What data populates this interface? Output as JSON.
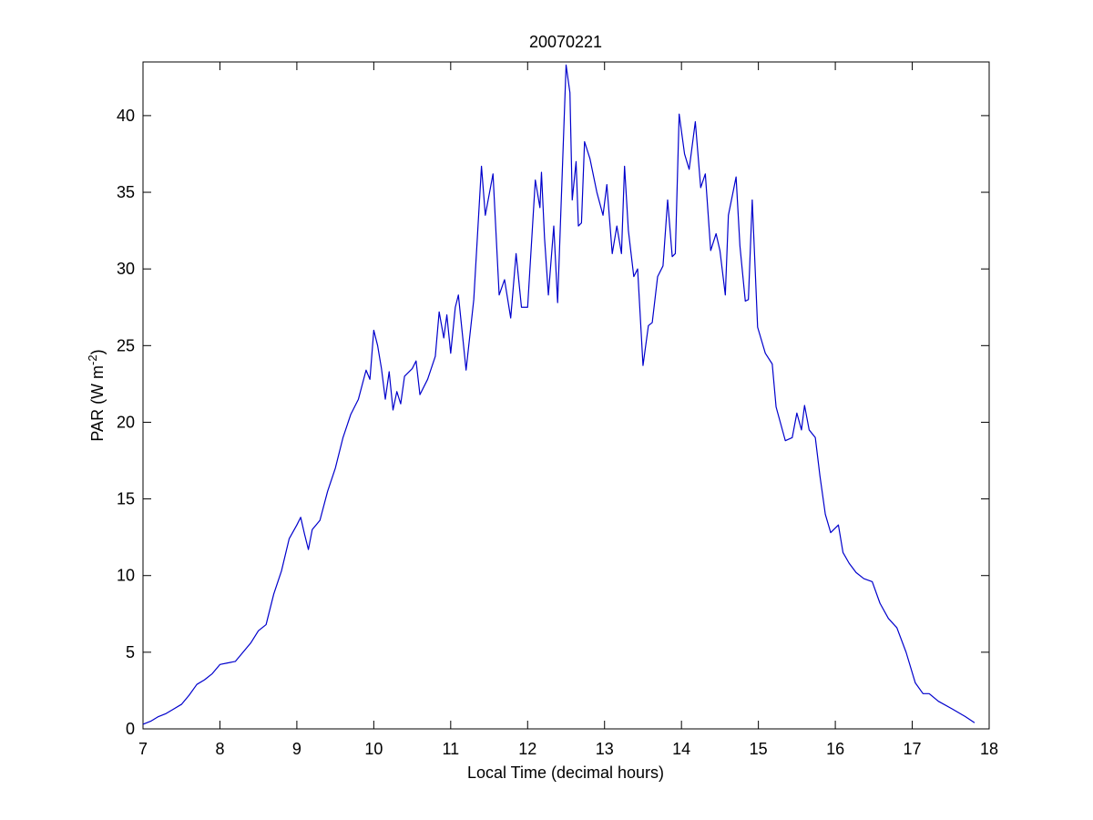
{
  "chart_data": {
    "type": "line",
    "title": "20070221",
    "xlabel": "Local Time (decimal hours)",
    "ylabel": {
      "text": "PAR (W m",
      "superscript": "-2",
      "suffix": ")"
    },
    "xlim": [
      7,
      18
    ],
    "ylim": [
      0,
      43.5
    ],
    "xticks": [
      7,
      8,
      9,
      10,
      11,
      12,
      13,
      14,
      15,
      16,
      17,
      18
    ],
    "yticks": [
      0,
      5,
      10,
      15,
      20,
      25,
      30,
      35,
      40
    ],
    "grid": false,
    "series": [
      {
        "color": "#0000cc",
        "x": [
          7.0,
          7.1,
          7.2,
          7.3,
          7.4,
          7.5,
          7.6,
          7.7,
          7.8,
          7.9,
          8.0,
          8.1,
          8.2,
          8.3,
          8.4,
          8.5,
          8.6,
          8.7,
          8.8,
          8.9,
          9.0,
          9.05,
          9.1,
          9.15,
          9.2,
          9.3,
          9.4,
          9.5,
          9.6,
          9.7,
          9.8,
          9.9,
          9.95,
          10.0,
          10.05,
          10.1,
          10.15,
          10.2,
          10.25,
          10.3,
          10.35,
          10.4,
          10.5,
          10.55,
          10.6,
          10.7,
          10.8,
          10.85,
          10.91,
          10.95,
          11.0,
          11.06,
          11.1,
          11.2,
          11.3,
          11.4,
          11.45,
          11.55,
          11.63,
          11.7,
          11.78,
          11.85,
          11.92,
          12.0,
          12.1,
          12.16,
          12.18,
          12.22,
          12.27,
          12.34,
          12.39,
          12.5,
          12.55,
          12.58,
          12.63,
          12.66,
          12.7,
          12.74,
          12.81,
          12.9,
          12.98,
          13.03,
          13.1,
          13.16,
          13.22,
          13.26,
          13.31,
          13.38,
          13.43,
          13.5,
          13.57,
          13.62,
          13.69,
          13.76,
          13.82,
          13.88,
          13.92,
          13.97,
          14.04,
          14.1,
          14.18,
          14.25,
          14.31,
          14.38,
          14.45,
          14.5,
          14.57,
          14.61,
          14.71,
          14.76,
          14.83,
          14.87,
          14.92,
          14.99,
          15.09,
          15.18,
          15.23,
          15.35,
          15.44,
          15.5,
          15.56,
          15.6,
          15.66,
          15.74,
          15.8,
          15.87,
          15.94,
          16.04,
          16.1,
          16.18,
          16.27,
          16.37,
          16.48,
          16.58,
          16.69,
          16.8,
          16.92,
          17.04,
          17.14,
          17.22,
          17.34,
          17.52,
          17.69,
          17.81
        ],
        "values": [
          0.3,
          0.5,
          0.8,
          1.0,
          1.3,
          1.6,
          2.2,
          2.9,
          3.2,
          3.6,
          4.2,
          4.3,
          4.4,
          5.0,
          5.6,
          6.4,
          6.8,
          8.8,
          10.3,
          12.4,
          13.3,
          13.8,
          12.7,
          11.7,
          13.0,
          13.6,
          15.5,
          17.0,
          19.0,
          20.5,
          21.5,
          23.4,
          22.8,
          26.0,
          25.0,
          23.5,
          21.5,
          23.3,
          20.8,
          22.0,
          21.2,
          23.0,
          23.5,
          24.0,
          21.8,
          22.8,
          24.3,
          27.2,
          25.5,
          27.0,
          24.5,
          27.5,
          28.3,
          23.4,
          28.0,
          36.7,
          33.5,
          36.2,
          28.3,
          29.3,
          26.8,
          31.0,
          27.5,
          27.5,
          35.8,
          34.0,
          36.3,
          32.0,
          28.3,
          32.8,
          27.8,
          43.3,
          41.5,
          34.5,
          37.0,
          32.8,
          33.0,
          38.3,
          37.2,
          35.0,
          33.5,
          35.5,
          31.0,
          32.8,
          31.0,
          36.7,
          32.5,
          29.5,
          30.0,
          23.7,
          26.3,
          26.5,
          29.5,
          30.2,
          34.5,
          30.8,
          31.0,
          40.1,
          37.5,
          36.5,
          39.6,
          35.3,
          36.2,
          31.2,
          32.3,
          31.2,
          28.3,
          33.5,
          36.0,
          31.5,
          27.9,
          28.0,
          34.5,
          26.2,
          24.5,
          23.8,
          21.0,
          18.8,
          19.0,
          20.6,
          19.5,
          21.1,
          19.5,
          19.0,
          16.5,
          14.0,
          12.8,
          13.3,
          11.5,
          10.8,
          10.2,
          9.8,
          9.6,
          8.2,
          7.2,
          6.6,
          5.0,
          3.0,
          2.3,
          2.3,
          1.8,
          1.3,
          0.8,
          0.4
        ]
      }
    ]
  }
}
